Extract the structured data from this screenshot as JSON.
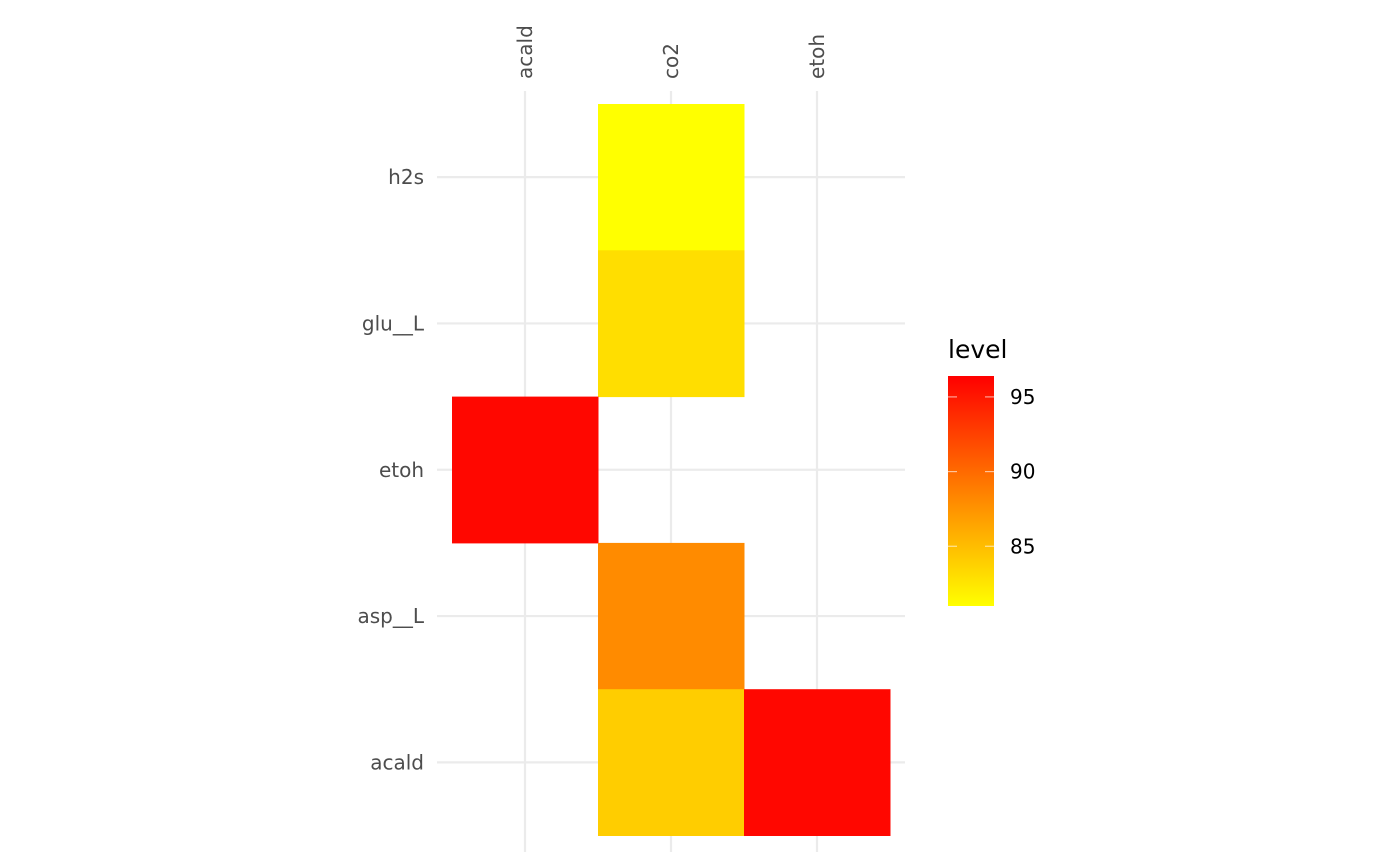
{
  "chart_data": {
    "type": "heatmap",
    "x_categories": [
      "acald",
      "co2",
      "etoh"
    ],
    "y_categories": [
      "acald",
      "asp__L",
      "etoh",
      "glu__L",
      "h2s"
    ],
    "cells": [
      {
        "x": "co2",
        "y": "h2s",
        "value": 81
      },
      {
        "x": "co2",
        "y": "glu__L",
        "value": 83
      },
      {
        "x": "acald",
        "y": "etoh",
        "value": 96
      },
      {
        "x": "co2",
        "y": "asp__L",
        "value": 88
      },
      {
        "x": "co2",
        "y": "acald",
        "value": 84
      },
      {
        "x": "etoh",
        "y": "acald",
        "value": 96
      }
    ],
    "color_scale": {
      "low_color": "#FFFF00",
      "high_color": "#FF0000",
      "limits": [
        81,
        96.4
      ],
      "breaks": [
        85,
        90,
        95
      ]
    },
    "legend": {
      "title": "level",
      "position": "right"
    },
    "x_axis_position": "top",
    "x_tick_rotation": -90,
    "grid": true
  }
}
